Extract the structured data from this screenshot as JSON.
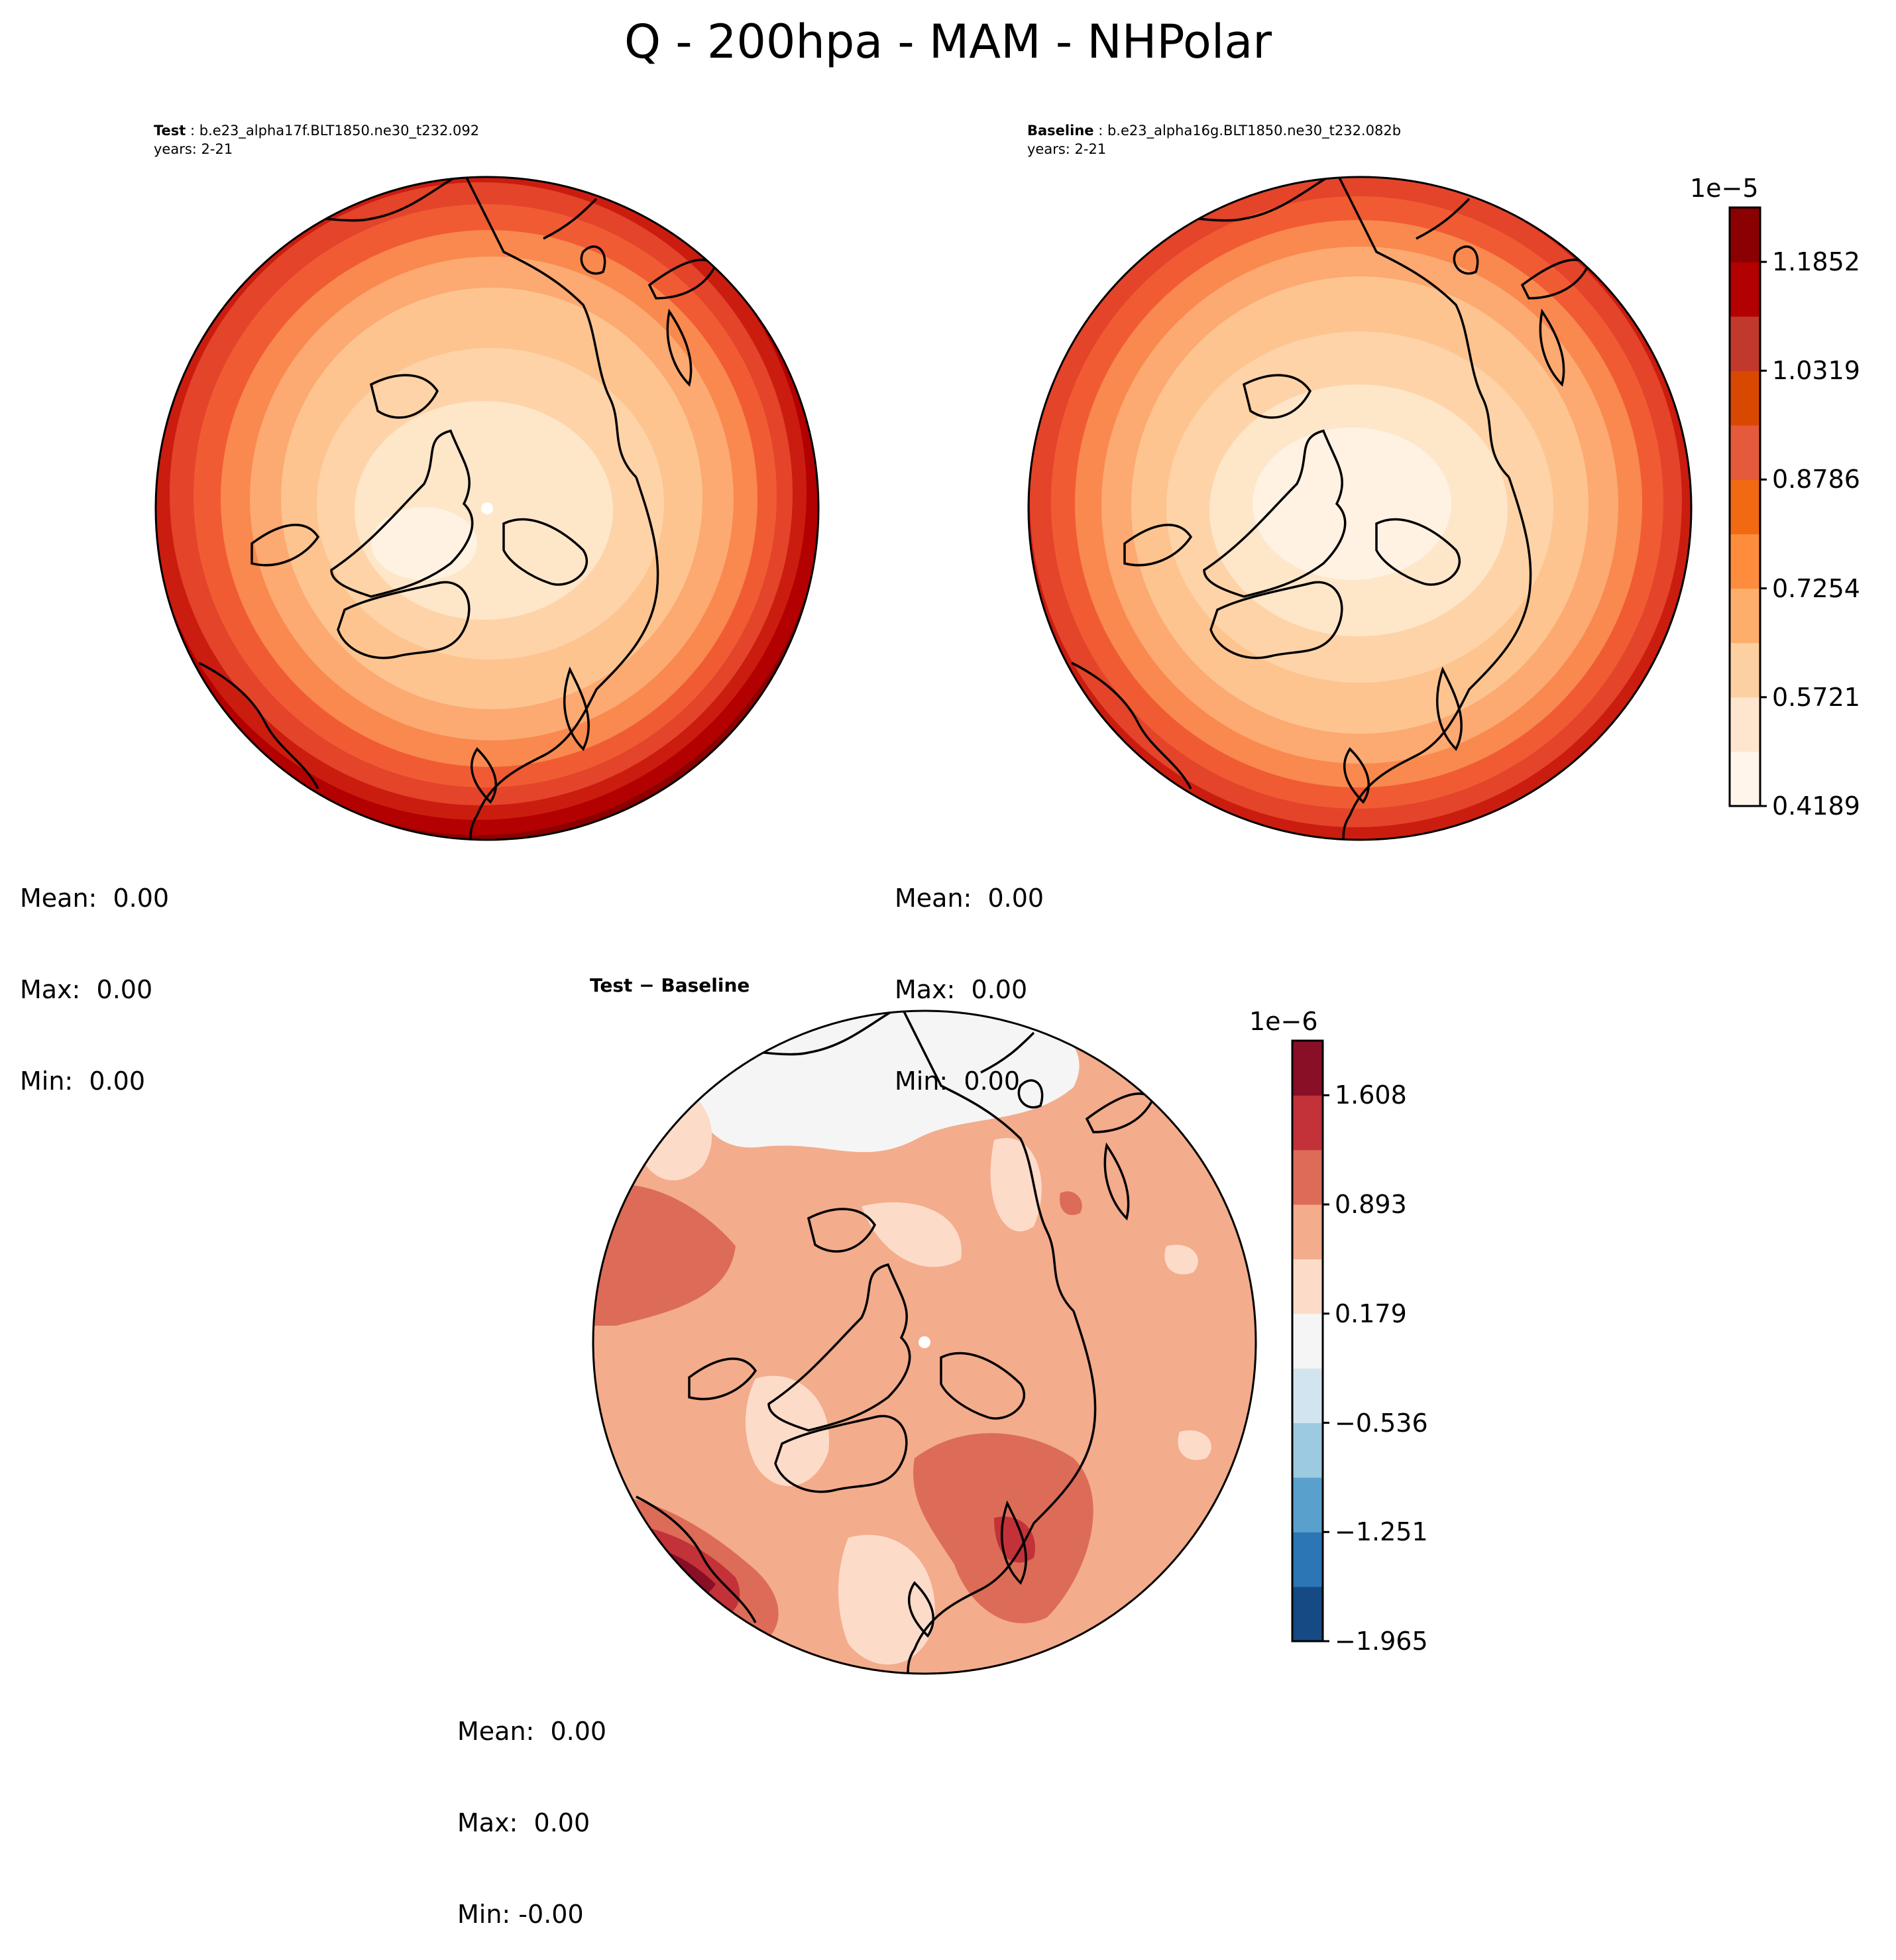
{
  "figure": {
    "title": "Q - 200hpa - MAM - NHPolar"
  },
  "panels": [
    {
      "id": "test",
      "label_bold": "Test",
      "label_sep": " : ",
      "case_name": "b.e23_alpha17f.BLT1850.ne30_t232.092",
      "years": "years: 2-21",
      "stats": {
        "mean": "Mean:  0.00",
        "max": "Max:  0.00",
        "min": "Min:  0.00"
      }
    },
    {
      "id": "baseline",
      "label_bold": "Baseline",
      "label_sep": " : ",
      "case_name": "b.e23_alpha16g.BLT1850.ne30_t232.082b",
      "years": "years: 2-21",
      "stats": {
        "mean": "Mean:  0.00",
        "max": "Max:  0.00",
        "min": "Min:  0.00"
      }
    },
    {
      "id": "diff",
      "title": "Test − Baseline",
      "stats": {
        "mean": "Mean:  0.00",
        "max": "Max:  0.00",
        "min": "Min: -0.00"
      }
    }
  ],
  "colorbars": {
    "main": {
      "exponent_label": "1e−5",
      "tick_labels": [
        "0.4189",
        "0.5721",
        "0.7254",
        "0.8786",
        "1.0319",
        "1.1852"
      ],
      "levels": 11,
      "colors": [
        "#fff5eb",
        "#fee6ce",
        "#fdd0a2",
        "#fdae6b",
        "#fd8d3c",
        "#f16913",
        "#e55a3a",
        "#d94801",
        "#c0392b",
        "#b30000",
        "#8b0000"
      ]
    },
    "diff": {
      "exponent_label": "1e−6",
      "tick_labels": [
        "−1.965",
        "−1.251",
        "−0.536",
        "0.179",
        "0.893",
        "1.608"
      ],
      "levels": 11,
      "colors": [
        "#154a85",
        "#2c76b5",
        "#5aa0cc",
        "#9ccae1",
        "#d2e4f0",
        "#f5f5f5",
        "#fddbc9",
        "#f3ac8c",
        "#dc6c57",
        "#c23238",
        "#880f25"
      ]
    }
  },
  "chart_data": [
    {
      "type": "heatmap",
      "projection": "north polar stereographic",
      "title": "Test : b.e23_alpha17f.BLT1850.ne30_t232.092",
      "variable": "Q",
      "level": "200hpa",
      "season": "MAM",
      "units_scale": "1e-5",
      "levels": [
        0.4189,
        0.5721,
        0.7254,
        0.8786,
        1.0319,
        1.1852
      ],
      "range": [
        0.4189,
        1.3385
      ],
      "pattern": "minimum near pole, increasing toward outer edge, maximum in lower-left (North Atlantic) sector",
      "stats": {
        "mean": 0.0,
        "max": 0.0,
        "min": 0.0
      }
    },
    {
      "type": "heatmap",
      "projection": "north polar stereographic",
      "title": "Baseline : b.e23_alpha16g.BLT1850.ne30_t232.082b",
      "variable": "Q",
      "level": "200hpa",
      "season": "MAM",
      "units_scale": "1e-5",
      "levels": [
        0.4189,
        0.5721,
        0.7254,
        0.8786,
        1.0319,
        1.1852
      ],
      "range": [
        0.4189,
        1.3385
      ],
      "pattern": "minimum near pole, increasing toward outer edge",
      "stats": {
        "mean": 0.0,
        "max": 0.0,
        "min": 0.0
      }
    },
    {
      "type": "heatmap",
      "projection": "north polar stereographic",
      "title": "Test − Baseline",
      "units_scale": "1e-6",
      "levels": [
        -1.965,
        -1.251,
        -0.536,
        0.179,
        0.893,
        1.608
      ],
      "range": [
        -1.965,
        1.965
      ],
      "pattern": "mostly positive (0.179 to 0.893), near-zero over northern Pacific top, maximum > 1.608 lower-left",
      "stats": {
        "mean": 0.0,
        "max": 0.0,
        "min": -0.0
      }
    }
  ]
}
